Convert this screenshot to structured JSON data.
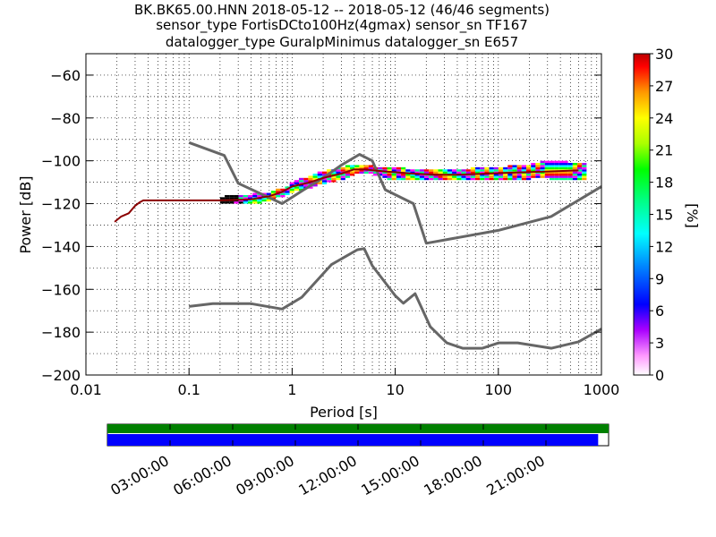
{
  "title_lines": [
    "BK.BK65.00.HNN   2018-05-12 -- 2018-05-12  (46/46 segments)",
    "sensor_type FortisDCto100Hz(4gmax) sensor_sn TF167",
    "datalogger_type GuralpMinimus datalogger_sn E657"
  ],
  "colors": {
    "noise_model": "#666666",
    "median": "#000000",
    "data_availability": "#0000ff",
    "gap_bar": "#008000"
  },
  "chart_data": [
    {
      "type": "heatmap",
      "subtype": "probabilistic-power-spectral-density",
      "xlabel": "Period [s]",
      "ylabel": "Power [dB]",
      "xscale": "log",
      "xlim": [
        0.01,
        1000
      ],
      "ylim": [
        -200,
        -50
      ],
      "x_ticks": [
        "0.01",
        "0.1",
        "1",
        "10",
        "100",
        "1000"
      ],
      "y_ticks": [
        "−60",
        "−80",
        "−100",
        "−120",
        "−140",
        "−160",
        "−180",
        "−200"
      ],
      "grid": "dotted",
      "colorbar": {
        "label": "[%]",
        "range": [
          0,
          30
        ],
        "ticks": [
          "0",
          "3",
          "6",
          "9",
          "12",
          "15",
          "18",
          "21",
          "24",
          "27",
          "30"
        ]
      },
      "series": [
        {
          "x": [
            0.1,
            0.22,
            0.3,
            0.8,
            1.0,
            1.3,
            2.0,
            3.0,
            4.5,
            6.0,
            8.0,
            15.0,
            20.0,
            100.0,
            325.0,
            1000.0
          ],
          "y": [
            -91.5,
            -97.5,
            -110.5,
            -120,
            -117,
            -113.5,
            -108,
            -102,
            -97,
            -100,
            -113.5,
            -120,
            -138.5,
            -132.5,
            -126,
            -112
          ]
        },
        {
          "x": [
            0.1,
            0.17,
            0.4,
            0.8,
            1.24,
            2.4,
            4.3,
            5.0,
            6.0,
            10.0,
            12.0,
            15.6,
            21.9,
            31.6,
            45.0,
            70.0,
            101.0,
            154.0,
            328.0,
            600.0,
            1000.0
          ],
          "y": [
            -168,
            -166.7,
            -166.7,
            -169.2,
            -163.7,
            -148.5,
            -141.5,
            -141,
            -149,
            -163,
            -166.5,
            -162,
            -177.5,
            -185,
            -187.5,
            -187.5,
            -185,
            -185,
            -187.5,
            -184.5,
            -178.5
          ]
        },
        {
          "x": [
            0.019,
            0.022,
            0.026,
            0.03,
            0.033,
            0.036,
            0.05,
            0.1,
            0.2,
            0.4,
            0.6,
            0.8,
            1.0,
            1.5,
            2.0,
            3.0,
            4.0,
            5.0,
            8.0,
            15.0,
            25.0,
            40.0,
            80.0,
            150.0,
            300.0,
            600.0
          ],
          "y": [
            -128.5,
            -126,
            -124.5,
            -121,
            -119.5,
            -118.5,
            -118.5,
            -118.5,
            -118.5,
            -118,
            -116.5,
            -114.5,
            -112,
            -110,
            -108,
            -106,
            -104,
            -104,
            -105,
            -106,
            -106.5,
            -106.5,
            -106,
            -105.5,
            -105,
            -104.5
          ]
        },
        {
          "x": [
            0.2,
            0.4,
            0.6,
            0.8,
            1.0,
            1.5,
            2.0,
            3.0,
            4.0,
            5.0,
            6.0,
            8.0,
            12.0,
            20.0,
            30.0,
            50.0,
            80.0,
            120.0,
            200.0,
            300.0,
            450.0,
            650.0
          ],
          "y_min": [
            -120,
            -120,
            -118,
            -116,
            -114,
            -112,
            -110,
            -108,
            -106,
            -105,
            -106,
            -108,
            -109,
            -109,
            -109,
            -109,
            -109,
            -109,
            -108,
            -108,
            -109,
            -108
          ],
          "y_max": [
            -117,
            -116,
            -115,
            -113,
            -110,
            -107,
            -105,
            -103,
            -102,
            -102,
            -103,
            -103,
            -104,
            -104,
            -104,
            -104,
            -103,
            -103,
            -102,
            -100,
            -101,
            -101
          ]
        }
      ]
    },
    {
      "type": "bar",
      "subtype": "data-availability-timeline",
      "x_ticks": [
        "03:00:00",
        "06:00:00",
        "09:00:00",
        "12:00:00",
        "15:00:00",
        "18:00:00",
        "21:00:00"
      ],
      "x_tick_hours": [
        3,
        6,
        9,
        12,
        15,
        18,
        21
      ],
      "xlim_hours": [
        0,
        24
      ],
      "coverage_hours": [
        0,
        23.5
      ]
    }
  ]
}
